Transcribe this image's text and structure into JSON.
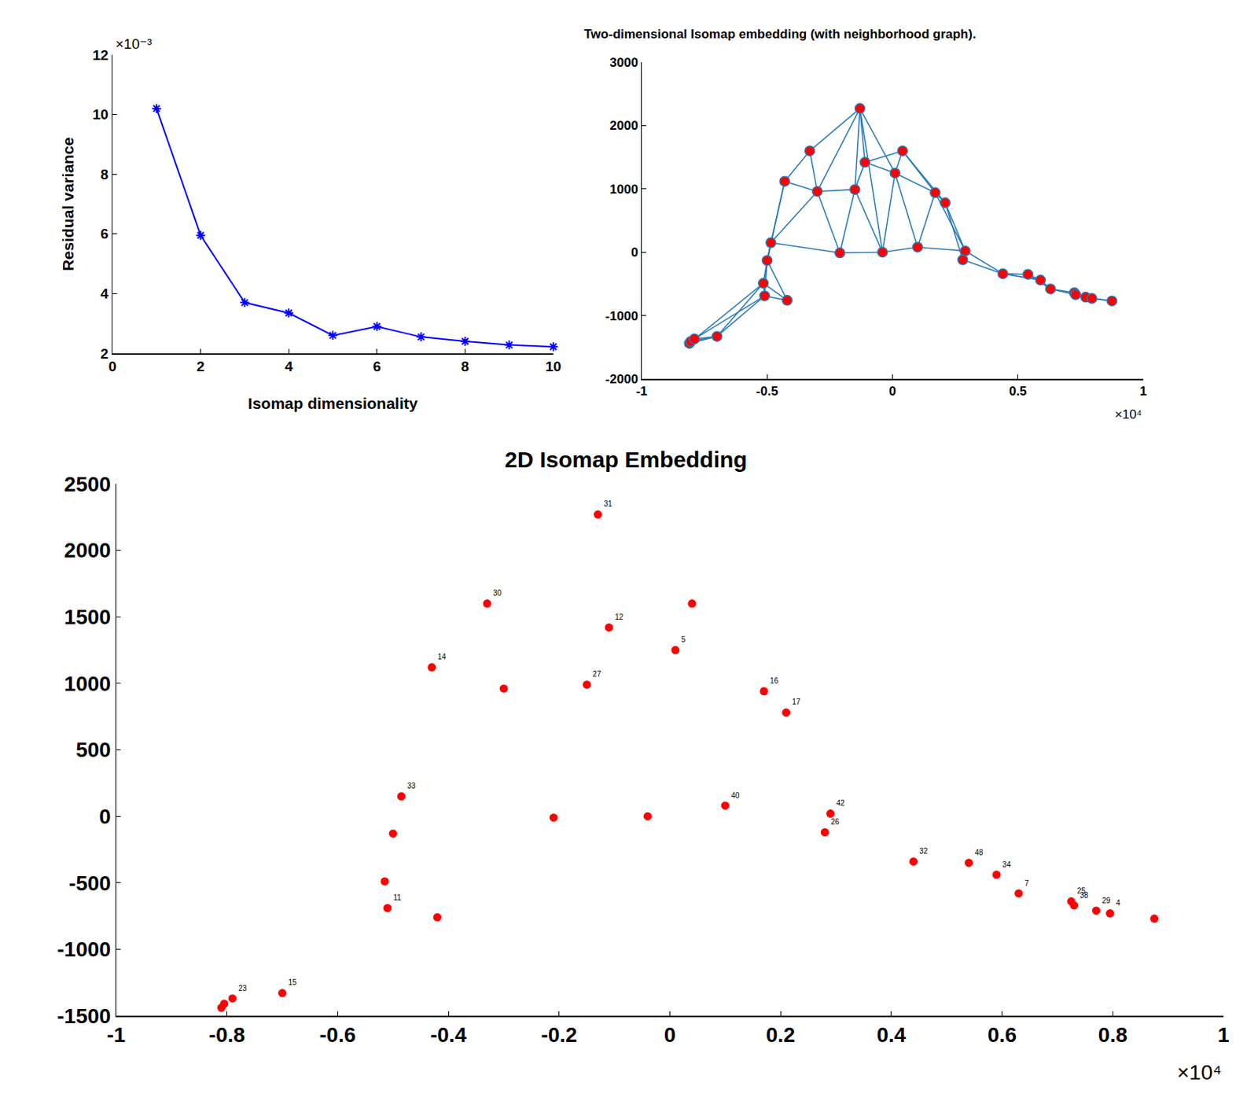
{
  "chart_data": [
    {
      "type": "line",
      "x": [
        1,
        2,
        3,
        4,
        5,
        6,
        7,
        8,
        9,
        10
      ],
      "values": [
        10.2,
        5.95,
        3.7,
        3.35,
        2.6,
        2.9,
        2.55,
        2.4,
        2.28,
        2.22
      ],
      "xlabel": "Isomap dimensionality",
      "ylabel": "Residual variance",
      "xlim": [
        0,
        10
      ],
      "xticks": [
        0,
        2,
        4,
        6,
        8,
        10
      ],
      "ylim": [
        2,
        12
      ],
      "yticks": [
        2,
        4,
        6,
        8,
        10,
        12
      ],
      "annotations": [
        {
          "text": "×10⁻³",
          "axis": "y"
        }
      ],
      "color": "#0000ff",
      "marker": "asterisk",
      "line_style": "solid"
    },
    {
      "type": "scatter",
      "title": "Two-dimensional Isomap embedding (with neighborhood graph).",
      "x": [
        -0.81,
        -0.805,
        -0.79,
        -0.7,
        -0.51,
        -0.515,
        -0.5,
        -0.485,
        -0.43,
        -0.42,
        -0.33,
        -0.3,
        -0.21,
        -0.15,
        -0.13,
        -0.11,
        -0.04,
        0.01,
        0.04,
        0.1,
        0.17,
        0.21,
        0.29,
        0.28,
        0.44,
        0.54,
        0.59,
        0.63,
        0.725,
        0.73,
        0.77,
        0.795,
        0.875
      ],
      "values": [
        -1440,
        -1410,
        -1370,
        -1330,
        -690,
        -490,
        -130,
        150,
        1120,
        -760,
        1600,
        960,
        -10,
        990,
        2270,
        1420,
        0,
        1250,
        1600,
        80,
        940,
        780,
        20,
        -120,
        -340,
        -350,
        -440,
        -580,
        -640,
        -670,
        -710,
        -730,
        -770
      ],
      "edges": [
        [
          0,
          1
        ],
        [
          1,
          2
        ],
        [
          0,
          2
        ],
        [
          2,
          3
        ],
        [
          1,
          3
        ],
        [
          0,
          3
        ],
        [
          3,
          4
        ],
        [
          3,
          5
        ],
        [
          2,
          4
        ],
        [
          0,
          5
        ],
        [
          4,
          5
        ],
        [
          5,
          6
        ],
        [
          4,
          6
        ],
        [
          6,
          7
        ],
        [
          5,
          7
        ],
        [
          4,
          9
        ],
        [
          5,
          9
        ],
        [
          9,
          6
        ],
        [
          7,
          8
        ],
        [
          6,
          8
        ],
        [
          8,
          10
        ],
        [
          8,
          11
        ],
        [
          7,
          11
        ],
        [
          10,
          11
        ],
        [
          10,
          14
        ],
        [
          11,
          14
        ],
        [
          11,
          12
        ],
        [
          7,
          12
        ],
        [
          12,
          13
        ],
        [
          11,
          13
        ],
        [
          13,
          14
        ],
        [
          13,
          15
        ],
        [
          14,
          15
        ],
        [
          14,
          16
        ],
        [
          15,
          17
        ],
        [
          14,
          17
        ],
        [
          12,
          16
        ],
        [
          16,
          19
        ],
        [
          13,
          16
        ],
        [
          15,
          18
        ],
        [
          17,
          18
        ],
        [
          17,
          19
        ],
        [
          16,
          17
        ],
        [
          18,
          20
        ],
        [
          17,
          20
        ],
        [
          19,
          20
        ],
        [
          19,
          22
        ],
        [
          20,
          21
        ],
        [
          18,
          21
        ],
        [
          20,
          22
        ],
        [
          21,
          22
        ],
        [
          22,
          23
        ],
        [
          21,
          23
        ],
        [
          23,
          24
        ],
        [
          22,
          24
        ],
        [
          24,
          25
        ],
        [
          25,
          26
        ],
        [
          24,
          26
        ],
        [
          26,
          27
        ],
        [
          25,
          27
        ],
        [
          27,
          28
        ],
        [
          28,
          29
        ],
        [
          27,
          29
        ],
        [
          29,
          30
        ],
        [
          28,
          30
        ],
        [
          30,
          31
        ],
        [
          29,
          31
        ],
        [
          31,
          32
        ],
        [
          30,
          32
        ]
      ],
      "xlim": [
        -1,
        1
      ],
      "xticks": [
        -1,
        -0.5,
        0,
        0.5,
        1
      ],
      "ylim": [
        -2000,
        3000
      ],
      "yticks": [
        -2000,
        -1000,
        0,
        1000,
        2000,
        3000
      ],
      "annotations": [
        {
          "text": "×10⁴",
          "axis": "x"
        }
      ],
      "color": "#ff0000",
      "marker": "circle"
    },
    {
      "type": "scatter",
      "title": "2D Isomap Embedding",
      "x": [
        -0.81,
        -0.805,
        -0.79,
        -0.7,
        -0.51,
        -0.515,
        -0.5,
        -0.485,
        -0.43,
        -0.42,
        -0.33,
        -0.3,
        -0.21,
        -0.15,
        -0.13,
        -0.11,
        -0.04,
        0.01,
        0.04,
        0.1,
        0.17,
        0.21,
        0.29,
        0.28,
        0.44,
        0.54,
        0.59,
        0.63,
        0.725,
        0.73,
        0.77,
        0.795,
        0.875
      ],
      "values": [
        -1440,
        -1410,
        -1370,
        -1330,
        -690,
        -490,
        -130,
        150,
        1120,
        -760,
        1600,
        960,
        -10,
        990,
        2270,
        1420,
        0,
        1250,
        1600,
        80,
        940,
        780,
        20,
        -120,
        -340,
        -350,
        -440,
        -580,
        -640,
        -670,
        -710,
        -730,
        -770
      ],
      "labels": [
        null,
        null,
        "23",
        "15",
        "11",
        null,
        null,
        "33",
        "14",
        null,
        "30",
        null,
        null,
        "27",
        "31",
        "12",
        null,
        "5",
        null,
        "40",
        "16",
        "17",
        "42",
        "26",
        "32",
        "48",
        "34",
        "7",
        "25",
        "38",
        "29",
        "4",
        null
      ],
      "xlim": [
        -1,
        1
      ],
      "xticks": [
        -1,
        -0.8,
        -0.6,
        -0.4,
        -0.2,
        0,
        0.2,
        0.4,
        0.6,
        0.8,
        1
      ],
      "ylim": [
        -1500,
        2500
      ],
      "yticks": [
        -1500,
        -1000,
        -500,
        0,
        500,
        1000,
        1500,
        2000,
        2500
      ],
      "annotations": [
        {
          "text": "×10⁴",
          "axis": "x"
        }
      ],
      "color": "#ff0000",
      "marker": "circle"
    }
  ]
}
